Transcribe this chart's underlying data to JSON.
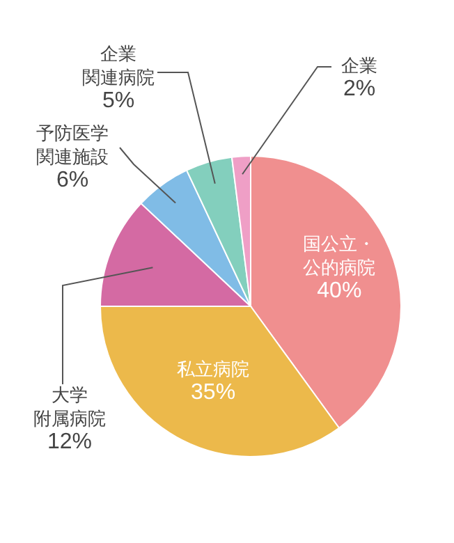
{
  "chart_data": {
    "type": "pie",
    "categories": [
      "国公立・公的病院",
      "私立病院",
      "大学附属病院",
      "予防医学関連施設",
      "企業関連病院",
      "企業"
    ],
    "values": [
      40,
      35,
      12,
      6,
      5,
      2
    ],
    "value_labels": [
      "40%",
      "35%",
      "12%",
      "6%",
      "5%",
      "2%"
    ],
    "colors": [
      "#f08f8f",
      "#ecb94b",
      "#d46aa3",
      "#80bce6",
      "#83cfbd",
      "#ef9fc6"
    ]
  }
}
